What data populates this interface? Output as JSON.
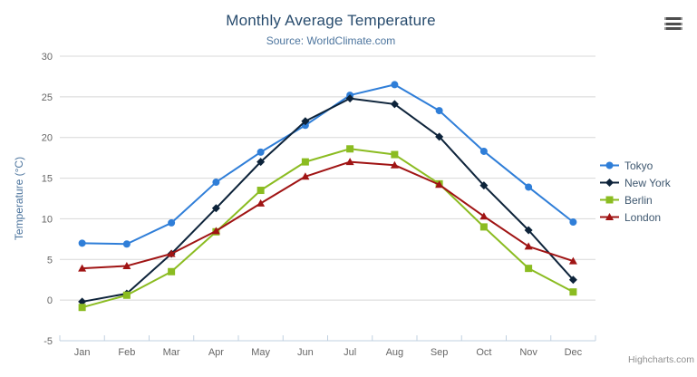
{
  "header": {
    "title": "Monthly Average Temperature",
    "subtitle": "Source: WorldClimate.com"
  },
  "credits": {
    "label": "Highcharts.com"
  },
  "colors": {
    "title": "#274b6d",
    "subtitle": "#4d759e",
    "axis_label": "#666666",
    "axis_title": "#4d759e",
    "legend_text": "#3e576f",
    "gridline": "#d8d8d8",
    "axis_line": "#c0d0e0",
    "credit": "#909090",
    "menu_icon": "#4d4d4d"
  },
  "chart_data": {
    "type": "line",
    "title": "Monthly Average Temperature",
    "subtitle": "Source: WorldClimate.com",
    "categories": [
      "Jan",
      "Feb",
      "Mar",
      "Apr",
      "May",
      "Jun",
      "Jul",
      "Aug",
      "Sep",
      "Oct",
      "Nov",
      "Dec"
    ],
    "series": [
      {
        "name": "Tokyo",
        "color": "#2f7ed8",
        "marker": "circle",
        "values": [
          7.0,
          6.9,
          9.5,
          14.5,
          18.2,
          21.5,
          25.2,
          26.5,
          23.3,
          18.3,
          13.9,
          9.6
        ]
      },
      {
        "name": "New York",
        "color": "#0d233a",
        "marker": "diamond",
        "values": [
          -0.2,
          0.8,
          5.7,
          11.3,
          17.0,
          22.0,
          24.8,
          24.1,
          20.1,
          14.1,
          8.6,
          2.5
        ]
      },
      {
        "name": "Berlin",
        "color": "#8bbc21",
        "marker": "square",
        "values": [
          -0.9,
          0.6,
          3.5,
          8.4,
          13.5,
          17.0,
          18.6,
          17.9,
          14.3,
          9.0,
          3.9,
          1.0
        ]
      },
      {
        "name": "London",
        "color": "#a01414",
        "marker": "triangle",
        "values": [
          3.9,
          4.2,
          5.7,
          8.5,
          11.9,
          15.2,
          17.0,
          16.6,
          14.2,
          10.3,
          6.6,
          4.8
        ]
      }
    ],
    "xlabel": "",
    "ylabel": "Temperature (°C)",
    "ylim": [
      -5,
      30
    ],
    "y_ticks": [
      -5,
      0,
      5,
      10,
      15,
      20,
      25,
      30
    ],
    "grid": true,
    "legend_position": "right"
  }
}
